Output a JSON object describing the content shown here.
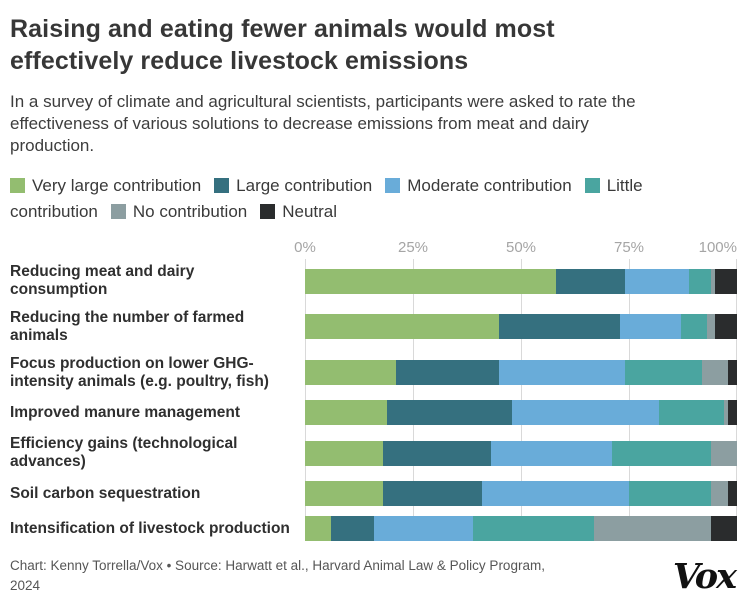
{
  "header": {
    "title": "Raising and eating fewer animals would most\neffectively reduce livestock emissions",
    "subtitle": "In a survey of climate and agricultural scientists, participants were asked to rate the\neffectiveness of various solutions to decrease emissions from meat and dairy\nproduction."
  },
  "chart_data": {
    "type": "bar",
    "orientation": "horizontal",
    "stacked": true,
    "unit": "percent",
    "xlim": [
      0,
      100
    ],
    "x_ticks": [
      "0%",
      "25%",
      "50%",
      "75%",
      "100%"
    ],
    "x_tick_positions": [
      0,
      25,
      50,
      75,
      100
    ],
    "grid": true,
    "legend_position": "top",
    "categories": [
      "Reducing meat and dairy consumption",
      "Reducing the number of farmed\nanimals",
      "Focus production on lower GHG-\nintensity animals (e.g. poultry, fish)",
      "Improved manure management",
      "Efficiency gains (technological\nadvances)",
      "Soil carbon sequestration",
      "Intensification of livestock production"
    ],
    "series": [
      {
        "name": "Very large contribution",
        "color": "#93bd70",
        "values": [
          58,
          45,
          21,
          19,
          18,
          18,
          6
        ]
      },
      {
        "name": "Large contribution",
        "color": "#35707f",
        "values": [
          16,
          28,
          24,
          29,
          25,
          23,
          10
        ]
      },
      {
        "name": "Moderate contribution",
        "color": "#69acd9",
        "values": [
          15,
          14,
          29,
          34,
          28,
          34,
          23
        ]
      },
      {
        "name": "Little contribution",
        "color": "#4aa5a0",
        "values": [
          5,
          6,
          18,
          15,
          23,
          19,
          28
        ]
      },
      {
        "name": "No contribution",
        "color": "#8c9ea1",
        "values": [
          1,
          2,
          6,
          1,
          6,
          4,
          27
        ]
      },
      {
        "name": "Neutral",
        "color": "#2a2c2d",
        "values": [
          5,
          5,
          2,
          2,
          0,
          2,
          6
        ]
      }
    ]
  },
  "footer": {
    "credit": "Chart: Kenny Torrella/Vox • Source: Harwatt et al., Harvard Animal Law & Policy Program,\n2024",
    "logo": "Vox"
  },
  "colors": {
    "title": "#373737",
    "subtitle": "#3d3d3d",
    "axis_labels": "#a5a5a5",
    "gridline": "#d9d9d9",
    "row_label": "#2f2f2f",
    "footer_text": "#565656",
    "background": "#ffffff"
  }
}
